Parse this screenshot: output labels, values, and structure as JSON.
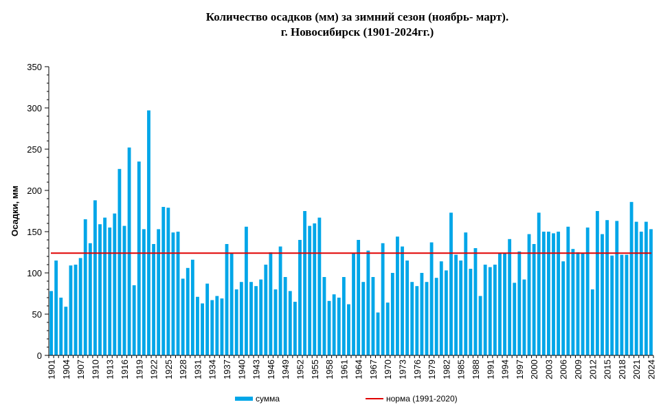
{
  "title_line1": "Количество осадков  (мм) за зимний сезон (ноябрь- март).",
  "title_line2": "г. Новосибирск (1901-2024гг.)",
  "colors": {
    "bar": "#00a6e8",
    "norm": "#e00000",
    "axis": "#000000"
  },
  "chart_data": {
    "type": "bar",
    "title": "Количество осадков  (мм) за зимний сезон (ноябрь- март). г. Новосибирск (1901-2024гг.)",
    "xlabel": "",
    "ylabel": "Осадки, мм",
    "ylim": [
      0,
      350
    ],
    "yticks": [
      0,
      50,
      100,
      150,
      200,
      250,
      300,
      350
    ],
    "xtick_labels": [
      "1901",
      "1904",
      "1907",
      "1910",
      "1913",
      "1916",
      "1919",
      "1922",
      "1925",
      "1928",
      "1931",
      "1934",
      "1937",
      "1940",
      "1943",
      "1946",
      "1949",
      "1952",
      "1955",
      "1958",
      "1961",
      "1964",
      "1967",
      "1970",
      "1973",
      "1976",
      "1979",
      "1982",
      "1985",
      "1988",
      "1991",
      "1994",
      "1997",
      "2000",
      "2003",
      "2006",
      "2009",
      "2012",
      "2015",
      "2018",
      "2021",
      "2024"
    ],
    "years": [
      1901,
      1902,
      1903,
      1904,
      1905,
      1906,
      1907,
      1908,
      1909,
      1910,
      1911,
      1912,
      1913,
      1914,
      1915,
      1916,
      1917,
      1918,
      1919,
      1920,
      1921,
      1922,
      1923,
      1924,
      1925,
      1926,
      1927,
      1928,
      1929,
      1930,
      1931,
      1932,
      1933,
      1934,
      1935,
      1936,
      1937,
      1938,
      1939,
      1940,
      1941,
      1942,
      1943,
      1944,
      1945,
      1946,
      1947,
      1948,
      1949,
      1950,
      1951,
      1952,
      1953,
      1954,
      1955,
      1956,
      1957,
      1958,
      1959,
      1960,
      1961,
      1962,
      1963,
      1964,
      1965,
      1966,
      1967,
      1968,
      1969,
      1970,
      1971,
      1972,
      1973,
      1974,
      1975,
      1976,
      1977,
      1978,
      1979,
      1980,
      1981,
      1982,
      1983,
      1984,
      1985,
      1986,
      1987,
      1988,
      1989,
      1990,
      1991,
      1992,
      1993,
      1994,
      1995,
      1996,
      1997,
      1998,
      1999,
      2000,
      2001,
      2002,
      2003,
      2004,
      2005,
      2006,
      2007,
      2008,
      2009,
      2010,
      2011,
      2012,
      2013,
      2014,
      2015,
      2016,
      2017,
      2018,
      2019,
      2020,
      2021,
      2022,
      2023,
      2024
    ],
    "series": [
      {
        "name": "сумма",
        "values": [
          78,
          115,
          70,
          59,
          109,
          110,
          118,
          165,
          136,
          188,
          159,
          167,
          155,
          172,
          226,
          157,
          252,
          85,
          235,
          153,
          297,
          135,
          153,
          180,
          179,
          149,
          150,
          93,
          106,
          116,
          71,
          63,
          87,
          67,
          72,
          69,
          135,
          124,
          80,
          89,
          156,
          89,
          84,
          92,
          110,
          125,
          80,
          132,
          95,
          78,
          65,
          140,
          175,
          157,
          160,
          167,
          95,
          66,
          74,
          70,
          95,
          62,
          124,
          140,
          89,
          127,
          95,
          52,
          136,
          64,
          100,
          144,
          132,
          115,
          89,
          84,
          100,
          89,
          137,
          94,
          114,
          103,
          173,
          122,
          115,
          149,
          105,
          130,
          72,
          110,
          107,
          110,
          124,
          124,
          141,
          88,
          126,
          92,
          147,
          135,
          173,
          150,
          150,
          148,
          150,
          114,
          156,
          129,
          125,
          124,
          155,
          80,
          175,
          147,
          164,
          121,
          163,
          122,
          122,
          186,
          162,
          150,
          162,
          153
        ]
      },
      {
        "name": "норма (1991-2020)",
        "type": "line",
        "values": [
          124
        ]
      }
    ],
    "legend": [
      "сумма",
      "норма (1991-2020)"
    ],
    "legend_position": "bottom",
    "grid": false
  }
}
